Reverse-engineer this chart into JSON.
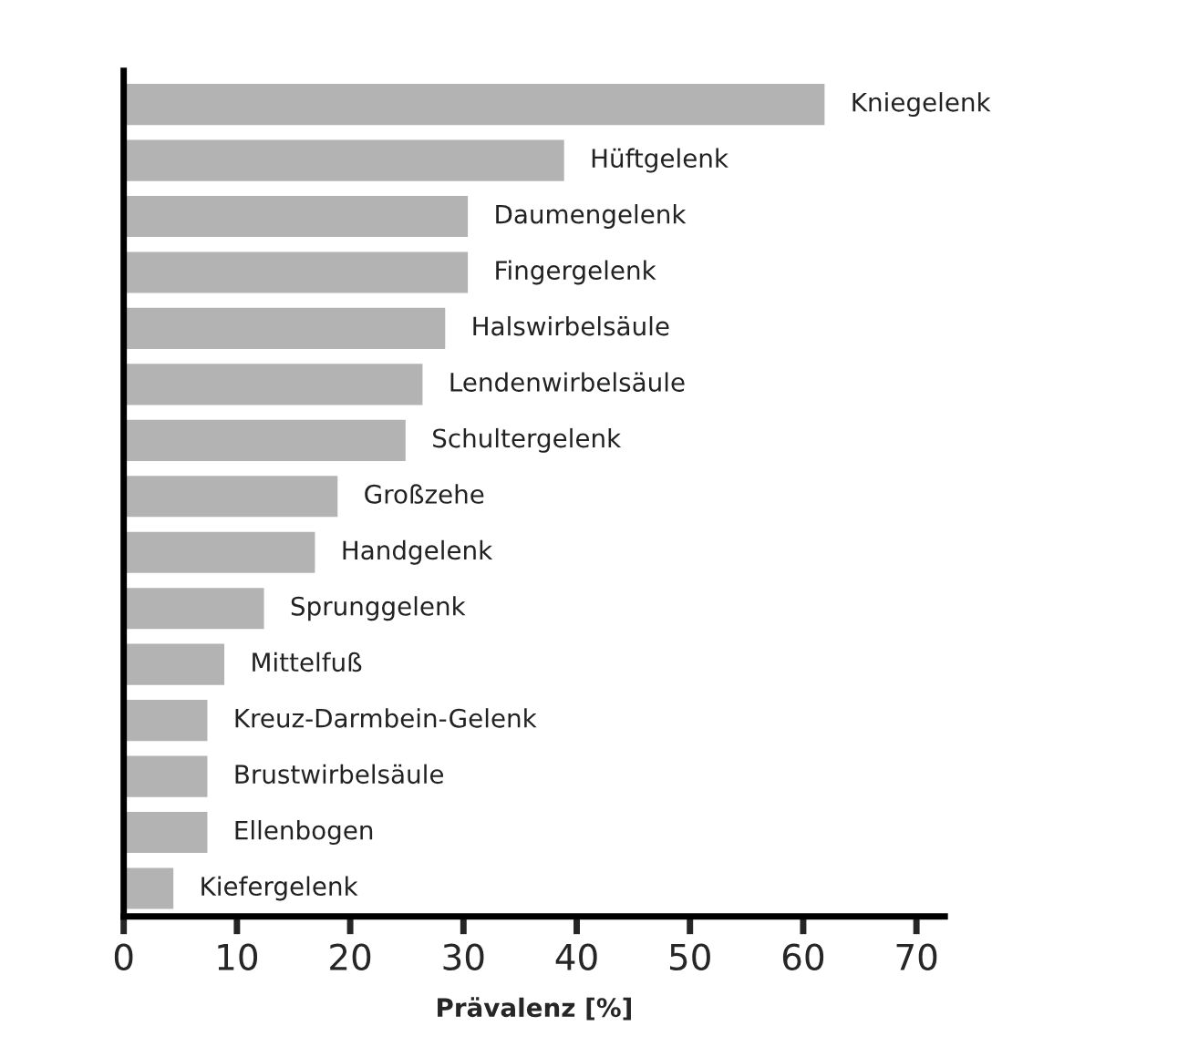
{
  "chart_data": {
    "type": "bar",
    "orientation": "horizontal",
    "xlabel": "Prävalenz [%]",
    "categories": [
      "Kniegelenk",
      "Hüftgelenk",
      "Daumengelenk",
      "Fingergelenk",
      "Halswirbelsäule",
      "Lendenwirbelsäule",
      "Schultergelenk",
      "Großzehe",
      "Handgelenk",
      "Sprunggelenk",
      "Mittelfuß",
      "Kreuz-Darmbein-Gelenk",
      "Brustwirbelsäule",
      "Ellenbogen",
      "Kiefergelenk"
    ],
    "values": [
      62,
      39,
      30.5,
      30.5,
      28.5,
      26.5,
      25,
      19,
      17,
      12.5,
      9,
      7.5,
      7.5,
      7.5,
      4.5
    ],
    "color": "#b3b3b3",
    "xlim": [
      0,
      72.5
    ],
    "xticks": [
      0,
      10,
      20,
      30,
      40,
      50,
      60,
      70
    ],
    "tick_labels": "x",
    "grid": false,
    "legend": false
  }
}
